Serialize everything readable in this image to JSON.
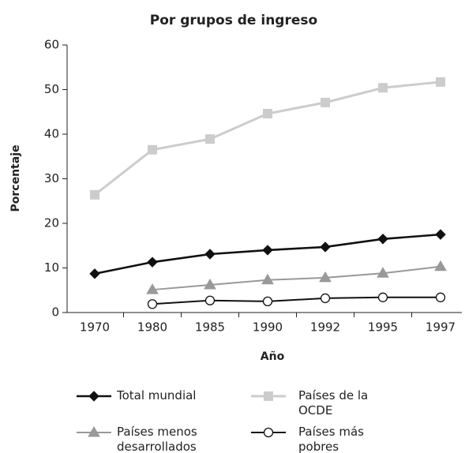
{
  "chart_data": {
    "type": "line",
    "title": "Por grupos de ingreso",
    "x_label": "Año",
    "y_label": "Porcentaje",
    "categories": [
      "1970",
      "1980",
      "1985",
      "1990",
      "1992",
      "1995",
      "1997"
    ],
    "ylim": [
      0,
      60
    ],
    "yticks": [
      0,
      10,
      20,
      30,
      40,
      50,
      60
    ],
    "series": [
      {
        "name": "Total mundial",
        "color": "#111111",
        "marker": "diamond",
        "values": [
          8.7,
          11.3,
          13.1,
          14.0,
          14.7,
          16.5,
          17.5
        ]
      },
      {
        "name": "Países de la OCDE",
        "color": "#cccccc",
        "marker": "square",
        "values": [
          26.4,
          36.5,
          38.9,
          44.6,
          47.1,
          50.4,
          51.7
        ]
      },
      {
        "name": "Países menos desarrollados",
        "color": "#999999",
        "marker": "triangle",
        "values": [
          null,
          5.1,
          6.2,
          7.3,
          7.8,
          8.8,
          10.3
        ]
      },
      {
        "name": "Países más pobres",
        "color": "#111111",
        "marker": "circle",
        "values": [
          null,
          1.9,
          2.7,
          2.5,
          3.2,
          3.4,
          3.4
        ]
      }
    ]
  }
}
